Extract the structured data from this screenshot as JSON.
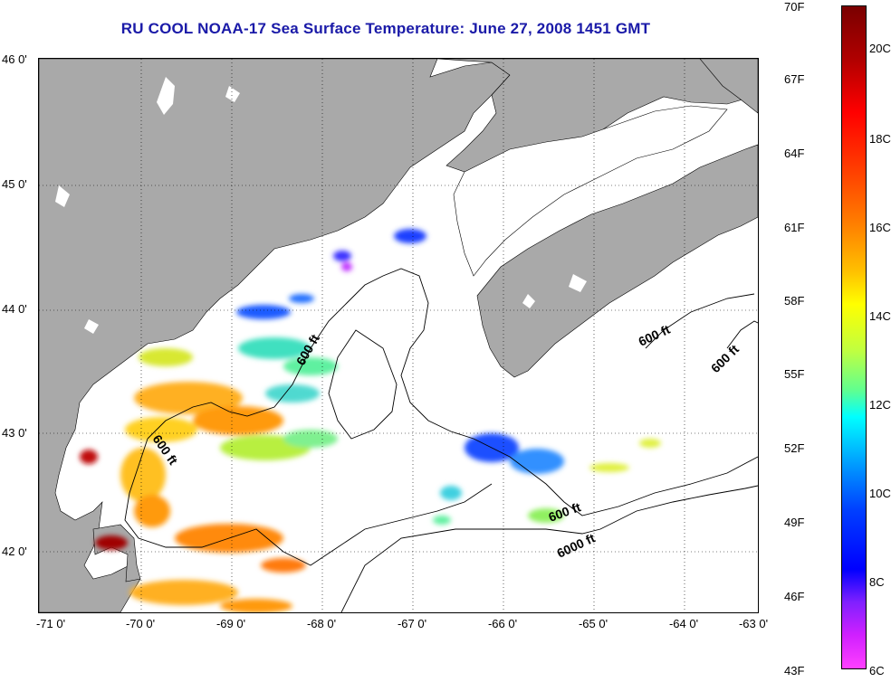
{
  "title": "RU COOL  NOAA-17  Sea Surface Temperature:  June 27, 2008 1451 GMT",
  "lat_ticks": [
    "46 0'",
    "45 0'",
    "44 0'",
    "43 0'",
    "42 0'"
  ],
  "lon_ticks": [
    "-71 0'",
    "-70 0'",
    "-69 0'",
    "-68 0'",
    "-67 0'",
    "-66 0'",
    "-65 0'",
    "-64 0'",
    "-63 0'"
  ],
  "colorbar": {
    "fahrenheit": [
      "70F",
      "67F",
      "64F",
      "61F",
      "58F",
      "55F",
      "52F",
      "49F",
      "46F",
      "43F"
    ],
    "celsius": [
      "20C",
      "18C",
      "16C",
      "14C",
      "12C",
      "10C",
      "8C",
      "6C"
    ]
  },
  "contour_labels": {
    "c600_a": "600 ft",
    "c600_b": "600 ft",
    "c600_c": "600 ft",
    "c600_d": "600 ft",
    "c600_e": "600 ft",
    "c6000": "6000 ft"
  },
  "colors": {
    "land": "#a9a9a9",
    "title": "#1a1aa8",
    "grid": "#000000"
  }
}
